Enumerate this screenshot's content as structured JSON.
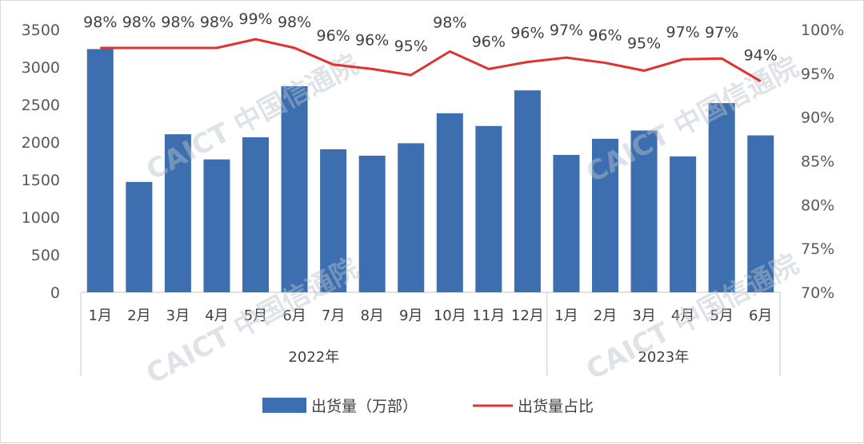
{
  "chart_data": {
    "type": "bar+line",
    "title": "",
    "groups": [
      {
        "label": "2022年",
        "months": [
          "1月",
          "2月",
          "3月",
          "4月",
          "5月",
          "6月",
          "7月",
          "8月",
          "9月",
          "10月",
          "11月",
          "12月"
        ]
      },
      {
        "label": "2023年",
        "months": [
          "1月",
          "2月",
          "3月",
          "4月",
          "5月",
          "6月"
        ]
      }
    ],
    "series": [
      {
        "name": "出货量（万部）",
        "kind": "bar",
        "axis": "left",
        "color": "#3d6fb0",
        "values": [
          3240,
          1470,
          2105,
          1770,
          2065,
          2745,
          1905,
          1820,
          1985,
          2385,
          2215,
          2690,
          1830,
          2045,
          2155,
          1810,
          2520,
          2090
        ]
      },
      {
        "name": "出货量占比",
        "kind": "line",
        "axis": "right",
        "color": "#e0332f",
        "values": [
          97.9,
          97.9,
          97.9,
          97.9,
          98.9,
          97.9,
          96.0,
          95.5,
          94.8,
          97.5,
          95.5,
          96.3,
          96.8,
          96.2,
          95.3,
          96.6,
          96.7,
          94.1
        ],
        "labels": [
          "98%",
          "98%",
          "98%",
          "98%",
          "99%",
          "98%",
          "96%",
          "96%",
          "95%",
          "98%",
          "96%",
          "96%",
          "97%",
          "96%",
          "95%",
          "97%",
          "97%",
          "94%"
        ]
      }
    ],
    "y_left": {
      "min": 0,
      "max": 3500,
      "ticks": [
        "0",
        "500",
        "1000",
        "1500",
        "2000",
        "2500",
        "3000",
        "3500"
      ]
    },
    "y_right": {
      "min": 70,
      "max": 100,
      "ticks": [
        "70%",
        "75%",
        "80%",
        "85%",
        "90%",
        "95%",
        "100%"
      ]
    },
    "legend_position": "bottom",
    "grid": false
  },
  "watermark": "CAICT 中国信通院"
}
